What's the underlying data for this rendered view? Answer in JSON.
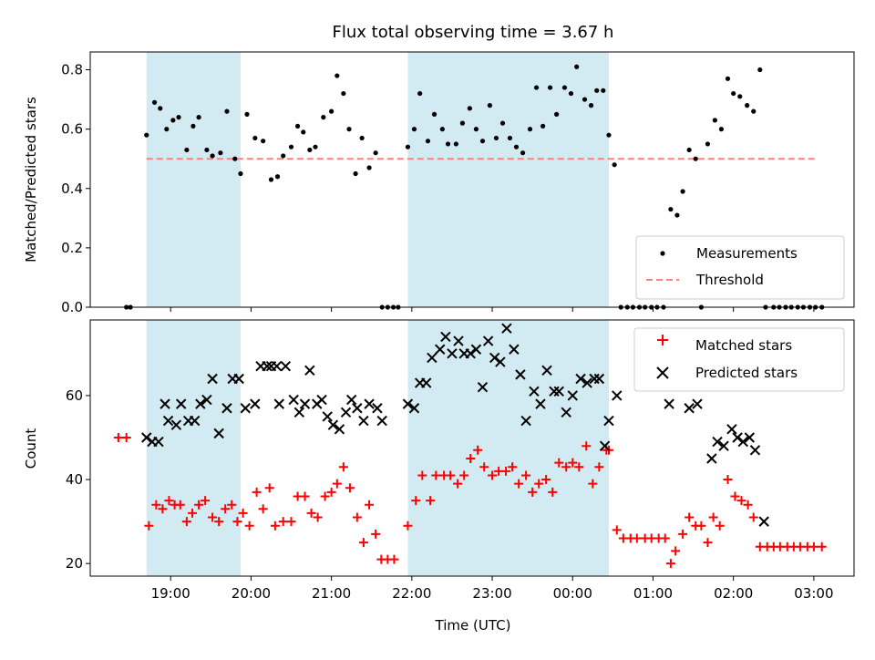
{
  "figure": {
    "title": "Flux total observing time = 3.67 h",
    "xlabel": "Time (UTC)",
    "xticks": [
      {
        "t": 19.0,
        "label": "19:00"
      },
      {
        "t": 20.0,
        "label": "20:00"
      },
      {
        "t": 21.0,
        "label": "21:00"
      },
      {
        "t": 22.0,
        "label": "22:00"
      },
      {
        "t": 23.0,
        "label": "23:00"
      },
      {
        "t": 24.0,
        "label": "00:00"
      },
      {
        "t": 25.0,
        "label": "01:00"
      },
      {
        "t": 26.0,
        "label": "02:00"
      },
      {
        "t": 27.0,
        "label": "03:00"
      }
    ],
    "xlim": [
      18.0,
      27.5
    ],
    "shaded_intervals": [
      [
        18.7,
        19.87
      ],
      [
        21.95,
        24.45
      ]
    ],
    "shade_color": "#add8e6"
  },
  "chart_data": [
    {
      "type": "scatter",
      "ylabel": "Matched/Predicted stars",
      "ylim": [
        0,
        0.86
      ],
      "yticks": [
        0.0,
        0.2,
        0.4,
        0.6,
        0.8
      ],
      "legend_position": "lower-right",
      "legend": [
        "Measurements",
        "Threshold"
      ],
      "threshold": {
        "name": "Threshold",
        "value": 0.5,
        "x_range": [
          18.7,
          27.05
        ],
        "color": "#ff8080"
      },
      "series": [
        {
          "name": "Measurements",
          "color": "#000000",
          "x": [
            18.45,
            18.5,
            18.7,
            18.8,
            18.87,
            18.95,
            19.03,
            19.1,
            19.2,
            19.28,
            19.35,
            19.45,
            19.52,
            19.62,
            19.7,
            19.8,
            19.87,
            19.95,
            20.05,
            20.15,
            20.25,
            20.33,
            20.4,
            20.5,
            20.58,
            20.65,
            20.73,
            20.8,
            20.9,
            21.0,
            21.07,
            21.15,
            21.22,
            21.3,
            21.38,
            21.47,
            21.55,
            21.63,
            21.7,
            21.77,
            21.83,
            21.95,
            22.03,
            22.1,
            22.2,
            22.28,
            22.38,
            22.45,
            22.55,
            22.63,
            22.72,
            22.8,
            22.88,
            22.97,
            23.05,
            23.13,
            23.22,
            23.3,
            23.38,
            23.47,
            23.55,
            23.63,
            23.72,
            23.8,
            23.9,
            23.98,
            24.05,
            24.15,
            24.23,
            24.3,
            24.38,
            24.45,
            24.52,
            24.6,
            24.68,
            24.75,
            24.83,
            24.9,
            24.98,
            25.05,
            25.13,
            25.22,
            25.3,
            25.37,
            25.45,
            25.53,
            25.6,
            25.68,
            25.77,
            25.85,
            25.93,
            26.0,
            26.08,
            26.17,
            26.25,
            26.33,
            26.4,
            26.5,
            26.57,
            26.65,
            26.72,
            26.8,
            26.87,
            26.95,
            27.02,
            27.1
          ],
          "y": [
            0,
            0,
            0.58,
            0.69,
            0.67,
            0.6,
            0.63,
            0.64,
            0.53,
            0.61,
            0.64,
            0.53,
            0.51,
            0.52,
            0.66,
            0.5,
            0.45,
            0.65,
            0.57,
            0.56,
            0.43,
            0.44,
            0.51,
            0.54,
            0.61,
            0.59,
            0.53,
            0.54,
            0.64,
            0.66,
            0.78,
            0.72,
            0.6,
            0.45,
            0.57,
            0.47,
            0.52,
            0,
            0,
            0,
            0,
            0.54,
            0.6,
            0.72,
            0.56,
            0.65,
            0.6,
            0.55,
            0.55,
            0.62,
            0.67,
            0.6,
            0.56,
            0.68,
            0.57,
            0.62,
            0.57,
            0.54,
            0.52,
            0.6,
            0.74,
            0.61,
            0.74,
            0.65,
            0.74,
            0.72,
            0.81,
            0.7,
            0.68,
            0.73,
            0.73,
            0.58,
            0.48,
            0,
            0,
            0,
            0,
            0,
            0,
            0,
            0,
            0.33,
            0.31,
            0.39,
            0.53,
            0.5,
            0,
            0.55,
            0.63,
            0.6,
            0.77,
            0.72,
            0.71,
            0.68,
            0.66,
            0.8,
            0,
            0,
            0,
            0,
            0,
            0,
            0,
            0,
            0,
            0
          ]
        }
      ]
    },
    {
      "type": "scatter",
      "ylabel": "Count",
      "ylim": [
        17,
        78
      ],
      "yticks": [
        20,
        40,
        60
      ],
      "legend_position": "top-right",
      "legend": [
        "Matched stars",
        "Predicted stars"
      ],
      "series": [
        {
          "name": "Matched stars",
          "marker": "plus",
          "color": "#ff0000",
          "x": [
            18.35,
            18.45,
            18.73,
            18.82,
            18.9,
            18.98,
            19.05,
            19.12,
            19.2,
            19.27,
            19.35,
            19.43,
            19.52,
            19.6,
            19.68,
            19.76,
            19.83,
            19.9,
            19.98,
            20.07,
            20.15,
            20.23,
            20.3,
            20.4,
            20.5,
            20.58,
            20.67,
            20.75,
            20.83,
            20.92,
            21.0,
            21.07,
            21.15,
            21.23,
            21.32,
            21.4,
            21.47,
            21.55,
            21.62,
            21.7,
            21.78,
            21.95,
            22.05,
            22.13,
            22.23,
            22.3,
            22.4,
            22.48,
            22.57,
            22.65,
            22.73,
            22.82,
            22.9,
            23.0,
            23.08,
            23.17,
            23.25,
            23.33,
            23.42,
            23.5,
            23.58,
            23.67,
            23.75,
            23.83,
            23.92,
            24.0,
            24.08,
            24.17,
            24.25,
            24.33,
            24.42,
            24.45,
            24.55,
            24.63,
            24.72,
            24.8,
            24.9,
            24.98,
            25.07,
            25.15,
            25.22,
            25.28,
            25.37,
            25.45,
            25.53,
            25.6,
            25.68,
            25.75,
            25.83,
            25.93,
            26.02,
            26.1,
            26.18,
            26.25,
            26.33,
            26.42,
            26.5,
            26.58,
            26.67,
            26.75,
            26.83,
            26.92,
            27.0,
            27.1
          ],
          "y": [
            50,
            50,
            29,
            34,
            33,
            35,
            34,
            34,
            30,
            32,
            34,
            35,
            31,
            30,
            33,
            34,
            30,
            32,
            29,
            37,
            33,
            38,
            29,
            30,
            30,
            36,
            36,
            32,
            31,
            36,
            37,
            39,
            43,
            38,
            31,
            25,
            34,
            27,
            21,
            21,
            21,
            29,
            35,
            41,
            35,
            41,
            41,
            41,
            39,
            41,
            45,
            47,
            43,
            41,
            42,
            42,
            43,
            39,
            41,
            37,
            39,
            40,
            37,
            44,
            43,
            44,
            43,
            48,
            39,
            43,
            47,
            47,
            28,
            26,
            26,
            26,
            26,
            26,
            26,
            26,
            20,
            23,
            27,
            31,
            29,
            29,
            25,
            31,
            29,
            40,
            36,
            35,
            34,
            31,
            24,
            24,
            24,
            24,
            24,
            24,
            24,
            24,
            24,
            24
          ]
        },
        {
          "name": "Predicted stars",
          "marker": "x",
          "color": "#000000",
          "x": [
            18.7,
            18.77,
            18.85,
            18.93,
            18.97,
            19.07,
            19.13,
            19.22,
            19.3,
            19.37,
            19.45,
            19.52,
            19.6,
            19.7,
            19.77,
            19.85,
            19.93,
            20.05,
            20.12,
            20.2,
            20.25,
            20.32,
            20.35,
            20.43,
            20.53,
            20.6,
            20.67,
            20.73,
            20.82,
            20.88,
            20.95,
            21.02,
            21.1,
            21.18,
            21.25,
            21.32,
            21.4,
            21.47,
            21.57,
            21.63,
            21.95,
            22.03,
            22.1,
            22.18,
            22.25,
            22.35,
            22.42,
            22.5,
            22.58,
            22.65,
            22.73,
            22.8,
            22.88,
            22.95,
            23.03,
            23.1,
            23.18,
            23.27,
            23.35,
            23.42,
            23.52,
            23.6,
            23.68,
            23.77,
            23.83,
            23.92,
            24.0,
            24.1,
            24.18,
            24.27,
            24.33,
            24.4,
            24.45,
            24.55,
            25.2,
            25.45,
            25.55,
            25.73,
            25.8,
            25.88,
            25.98,
            26.05,
            26.12,
            26.2,
            26.27,
            26.38
          ],
          "y": [
            50,
            49,
            49,
            58,
            54,
            53,
            58,
            54,
            54,
            58,
            59,
            64,
            51,
            57,
            64,
            64,
            57,
            58,
            67,
            67,
            67,
            67,
            58,
            67,
            59,
            56,
            58,
            66,
            58,
            59,
            55,
            53,
            52,
            56,
            59,
            57,
            54,
            58,
            57,
            54,
            58,
            57,
            63,
            63,
            69,
            71,
            74,
            70,
            73,
            70,
            70,
            71,
            62,
            73,
            69,
            68,
            76,
            71,
            65,
            54,
            61,
            58,
            66,
            61,
            61,
            56,
            60,
            64,
            63,
            64,
            64,
            48,
            54,
            60,
            58,
            57,
            58,
            45,
            49,
            48,
            52,
            50,
            49,
            50,
            47,
            30
          ]
        }
      ]
    }
  ]
}
